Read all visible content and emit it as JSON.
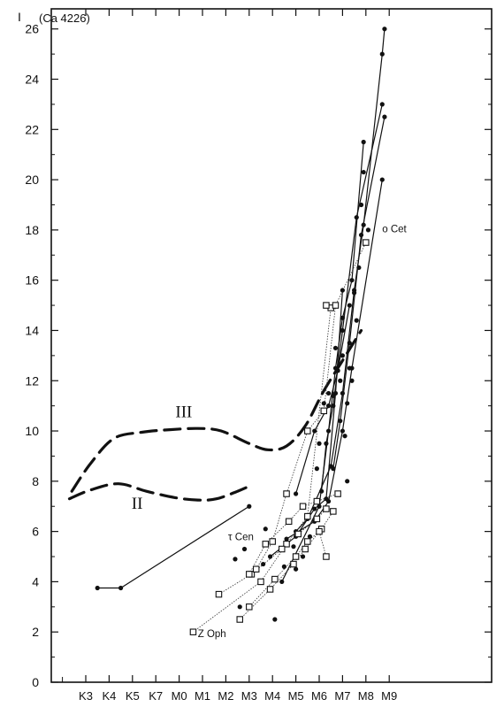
{
  "chart_data": {
    "type": "scatter",
    "title": "",
    "y_axis_symbol": "I",
    "line_label": "(Ca 4226)",
    "xlabel": "",
    "ylabel": "",
    "x_categories": [
      "K3",
      "K4",
      "K5",
      "K7",
      "M0",
      "M1",
      "M2",
      "M3",
      "M4",
      "M5",
      "M6",
      "M7",
      "M8",
      "M9"
    ],
    "y_ticks": [
      0,
      2,
      4,
      6,
      8,
      10,
      12,
      14,
      16,
      18,
      20,
      22,
      24,
      26
    ],
    "ylim": [
      0,
      26.8
    ],
    "grid": false,
    "luminosity_curves": [
      {
        "name": "III",
        "style": "dashed",
        "points": [
          [
            -0.6,
            7.6
          ],
          [
            0.2,
            8.7
          ],
          [
            1.2,
            9.7
          ],
          [
            2.4,
            9.95
          ],
          [
            3.6,
            10.05
          ],
          [
            4.8,
            10.1
          ],
          [
            5.8,
            10.0
          ],
          [
            7.0,
            9.5
          ],
          [
            7.8,
            9.25
          ],
          [
            8.6,
            9.4
          ],
          [
            9.4,
            10.2
          ],
          [
            10.2,
            11.6
          ],
          [
            11.0,
            12.8
          ],
          [
            11.8,
            14.0
          ]
        ]
      },
      {
        "name": "II",
        "style": "dashed",
        "points": [
          [
            -0.7,
            7.3
          ],
          [
            0.2,
            7.65
          ],
          [
            1.4,
            7.9
          ],
          [
            2.6,
            7.6
          ],
          [
            3.8,
            7.35
          ],
          [
            4.8,
            7.25
          ],
          [
            5.6,
            7.3
          ],
          [
            6.5,
            7.6
          ],
          [
            7.0,
            7.8
          ]
        ]
      }
    ],
    "star_labels": [
      {
        "name": "τ Cen",
        "x": 6.1,
        "y": 5.65
      },
      {
        "name": "Z Oph",
        "x": 4.8,
        "y": 1.8
      },
      {
        "name": "o Cet",
        "x": 12.7,
        "y": 17.9
      }
    ],
    "dot_series": [
      {
        "points": [
          [
            0.5,
            3.75
          ],
          [
            1.5,
            3.75
          ],
          [
            7.0,
            7.0
          ]
        ]
      },
      {
        "points": [
          [
            12.7,
            20.0
          ],
          [
            11.4,
            12.5
          ],
          [
            11.0,
            10.0
          ],
          [
            10.4,
            7.2
          ],
          [
            9.8,
            6.4
          ],
          [
            8.6,
            5.7
          ]
        ]
      },
      {
        "points": [
          [
            12.8,
            26.0
          ],
          [
            12.7,
            25.0
          ],
          [
            11.9,
            18.2
          ],
          [
            11.5,
            15.6
          ],
          [
            11.0,
            11.5
          ],
          [
            10.5,
            8.6
          ],
          [
            9.5,
            6.5
          ],
          [
            9.0,
            6.0
          ]
        ]
      },
      {
        "points": [
          [
            12.7,
            23.0
          ],
          [
            11.6,
            18.5
          ],
          [
            11.0,
            14.0
          ],
          [
            10.6,
            11.0
          ],
          [
            10.3,
            9.5
          ],
          [
            10.1,
            7.6
          ]
        ]
      },
      {
        "points": [
          [
            11.3,
            15.0
          ],
          [
            10.8,
            12.4
          ],
          [
            10.4,
            11.0
          ],
          [
            9.8,
            10.0
          ],
          [
            9.0,
            7.5
          ]
        ]
      },
      {
        "points": [
          [
            11.0,
            15.6
          ],
          [
            10.7,
            11.5
          ],
          [
            10.3,
            7.3
          ],
          [
            9.8,
            6.9
          ],
          [
            9.0,
            5.8
          ],
          [
            7.9,
            5.0
          ]
        ]
      },
      {
        "points": [
          [
            11.9,
            21.5
          ],
          [
            11.4,
            16.0
          ],
          [
            11.0,
            14.5
          ],
          [
            10.7,
            12.5
          ],
          [
            10.4,
            10.0
          ],
          [
            10.0,
            7.0
          ],
          [
            8.4,
            4.0
          ]
        ]
      },
      {
        "points": [
          [
            12.8,
            22.5
          ],
          [
            11.8,
            17.8
          ],
          [
            11.3,
            13.5
          ],
          [
            10.9,
            10.4
          ],
          [
            10.6,
            8.5
          ]
        ]
      }
    ],
    "open_square_series": [
      {
        "points": [
          [
            4.6,
            2.0
          ],
          [
            7.5,
            4.0
          ],
          [
            8.6,
            5.5
          ],
          [
            9.5,
            6.6
          ],
          [
            10.5,
            14.9
          ],
          [
            10.3,
            15.0
          ]
        ]
      },
      {
        "points": [
          [
            5.7,
            3.5
          ],
          [
            7.1,
            4.3
          ],
          [
            8.4,
            5.3
          ],
          [
            9.1,
            5.9
          ],
          [
            9.9,
            6.5
          ],
          [
            10.3,
            6.9
          ]
        ]
      },
      {
        "points": [
          [
            6.6,
            2.5
          ],
          [
            7.9,
            3.7
          ],
          [
            8.9,
            4.7
          ],
          [
            9.4,
            5.3
          ],
          [
            10.1,
            6.1
          ],
          [
            10.6,
            6.8
          ]
        ]
      },
      {
        "points": [
          [
            7.0,
            3.0
          ],
          [
            8.1,
            4.1
          ],
          [
            9.0,
            5.0
          ],
          [
            9.5,
            5.6
          ],
          [
            10.0,
            6.0
          ],
          [
            10.3,
            5.0
          ]
        ]
      },
      {
        "points": [
          [
            7.0,
            4.3
          ],
          [
            7.7,
            5.5
          ],
          [
            8.7,
            6.4
          ],
          [
            9.3,
            7.0
          ],
          [
            9.9,
            7.2
          ],
          [
            10.8,
            7.5
          ]
        ]
      },
      {
        "points": [
          [
            7.3,
            4.5
          ],
          [
            8.0,
            5.6
          ],
          [
            8.6,
            7.5
          ],
          [
            9.5,
            10.0
          ],
          [
            10.2,
            10.8
          ],
          [
            10.7,
            15.0
          ],
          [
            12.0,
            17.5
          ]
        ]
      }
    ],
    "extra_dots": [
      [
        6.4,
        4.9
      ],
      [
        6.8,
        5.3
      ],
      [
        6.6,
        3.0
      ],
      [
        7.6,
        4.7
      ],
      [
        7.7,
        6.1
      ],
      [
        8.1,
        2.5
      ],
      [
        8.5,
        4.6
      ],
      [
        9.0,
        4.5
      ],
      [
        8.9,
        5.4
      ],
      [
        9.3,
        5.0
      ],
      [
        9.6,
        5.8
      ],
      [
        9.9,
        8.5
      ],
      [
        10.0,
        9.5
      ],
      [
        10.2,
        11.1
      ],
      [
        10.6,
        11.4
      ],
      [
        10.9,
        12.0
      ],
      [
        11.1,
        9.8
      ],
      [
        11.2,
        11.1
      ],
      [
        11.3,
        12.5
      ],
      [
        11.6,
        14.4
      ],
      [
        11.7,
        16.5
      ],
      [
        11.8,
        19.0
      ],
      [
        11.9,
        20.3
      ],
      [
        12.1,
        18.0
      ],
      [
        11.2,
        8.0
      ],
      [
        10.7,
        13.3
      ],
      [
        11.4,
        12.0
      ],
      [
        11.0,
        13.0
      ],
      [
        10.4,
        11.5
      ],
      [
        11.5,
        15.5
      ]
    ]
  }
}
